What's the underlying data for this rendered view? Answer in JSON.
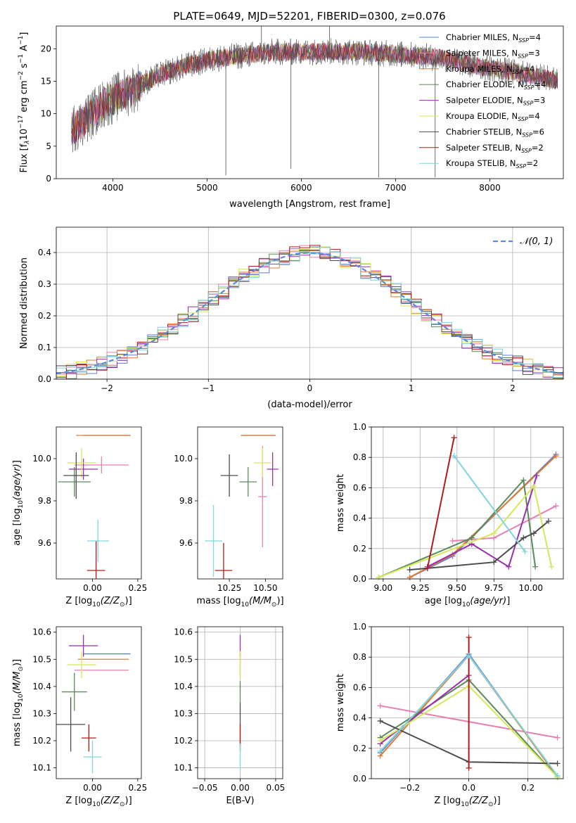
{
  "figure": {
    "title": "PLATE=0649, MJD=52201, FIBERID=0300, z=0.076"
  },
  "series_meta": [
    {
      "name": "Chabrier MILES, N_SSP=4",
      "label_main": "Chabrier MILES, N",
      "label_sub": "SSP",
      "label_tail": "=4",
      "color": "#5b7fd6"
    },
    {
      "name": "Salpeter MILES, N_SSP=3",
      "label_main": "Salpeter MILES, N",
      "label_sub": "SSP",
      "label_tail": "=3",
      "color": "#e87fb3"
    },
    {
      "name": "Kroupa MILES, N_SSP=4",
      "label_main": "Kroupa MILES, N",
      "label_sub": "SSP",
      "label_tail": "=4",
      "color": "#e07b2d"
    },
    {
      "name": "Chabrier ELODIE, N_SSP=4",
      "label_main": "Chabrier ELODIE, N",
      "label_sub": "SSP",
      "label_tail": "=4",
      "color": "#5a8a5a"
    },
    {
      "name": "Salpeter ELODIE, N_SSP=3",
      "label_main": "Salpeter ELODIE, N",
      "label_sub": "SSP",
      "label_tail": "=3",
      "color": "#9b2fae"
    },
    {
      "name": "Kroupa ELODIE, N_SSP=4",
      "label_main": "Kroupa ELODIE, N",
      "label_sub": "SSP",
      "label_tail": "=4",
      "color": "#d6e85a"
    },
    {
      "name": "Chabrier STELIB, N_SSP=6",
      "label_main": "Chabrier STELIB, N",
      "label_sub": "SSP",
      "label_tail": "=6",
      "color": "#4d4d4d"
    },
    {
      "name": "Salpeter STELIB, N_SSP=2",
      "label_main": "Salpeter STELIB, N",
      "label_sub": "SSP",
      "label_tail": "=2",
      "color": "#b01c1c"
    },
    {
      "name": "Kroupa STELIB, N_SSP=2",
      "label_main": "Kroupa STELIB, N",
      "label_sub": "SSP",
      "label_tail": "=2",
      "color": "#7fd6dc"
    }
  ],
  "chart_data": [
    {
      "id": "spectrum",
      "type": "line",
      "title": "PLATE=0649, MJD=52201, FIBERID=0300, z=0.076",
      "xlabel": "wavelength [Angstrom, rest frame]",
      "ylabel_main": "Flux [f",
      "ylabel_lambda": "λ",
      "ylabel_rest": "10",
      "ylabel_exp1": "−17",
      "ylabel_mid": " erg cm",
      "ylabel_exp2": "−2",
      "ylabel_s": " s",
      "ylabel_exp3": "−1",
      "ylabel_end": " A",
      "ylabel_exp4": "−1",
      "ylabel_close": "]",
      "xlim": [
        3400,
        8780
      ],
      "ylim": [
        0,
        23.5
      ],
      "xticks": [
        4000,
        5000,
        6000,
        7000,
        8000
      ],
      "yticks": [
        0,
        5,
        10,
        15,
        20
      ],
      "continuum": {
        "x": [
          3550,
          3700,
          3900,
          4100,
          4300,
          4500,
          4800,
          5100,
          5400,
          5700,
          6000,
          6300,
          6600,
          6900,
          7200,
          7500,
          7800,
          8100,
          8400,
          8780
        ],
        "y": [
          7.5,
          9.0,
          11.5,
          13.0,
          14.5,
          16.0,
          17.5,
          18.5,
          19.0,
          19.5,
          19.5,
          19.6,
          19.5,
          19.3,
          19.0,
          18.5,
          17.5,
          16.8,
          16.0,
          15.0
        ]
      },
      "spikes": [
        {
          "x": 5199,
          "y": 0.5
        },
        {
          "x": 5577,
          "y": 23.5
        },
        {
          "x": 5890,
          "y": 1.5
        },
        {
          "x": 6300,
          "y": 23.5
        },
        {
          "x": 6820,
          "y": 0.2
        },
        {
          "x": 7420,
          "y": 0.2
        }
      ]
    },
    {
      "id": "residual-histogram",
      "type": "line",
      "xlabel": "(data-model)/error",
      "ylabel": "Normed distribution",
      "xlim": [
        -2.5,
        2.5
      ],
      "ylim": [
        0,
        0.48
      ],
      "xticks": [
        -2,
        -1,
        0,
        1,
        2
      ],
      "yticks": [
        0,
        0.1,
        0.2,
        0.3,
        0.4
      ],
      "legend": "𝒩(0, 1)",
      "legend_placement": "top-right",
      "grid": true
    },
    {
      "id": "age-vs-Z",
      "type": "scatter",
      "xlabel_main": "Z [log",
      "xlabel_sub": "10",
      "xlabel_tail": "(Z/Z",
      "xlabel_sun": "⊙",
      "xlabel_end": ")]",
      "ylabel": "age  [log10(age/yr)]",
      "xlim": [
        -0.2,
        0.27
      ],
      "ylim": [
        9.43,
        10.15
      ],
      "xticks": [
        0.0,
        0.25
      ],
      "xtick_labels": [
        "0.00",
        "0.25"
      ],
      "yticks": [
        9.6,
        9.8,
        10.0
      ],
      "points": [
        {
          "series": 0,
          "x": 0.08,
          "y": 10.11,
          "xerr": 0.13,
          "yerr": 0.0
        },
        {
          "series": 1,
          "x": 0.05,
          "y": 9.97,
          "xerr": 0.15,
          "yerr": 0.04
        },
        {
          "series": 2,
          "x": 0.06,
          "y": 10.11,
          "xerr": 0.15,
          "yerr": 0.0
        },
        {
          "series": 3,
          "x": -0.1,
          "y": 9.89,
          "xerr": 0.09,
          "yerr": 0.07
        },
        {
          "series": 4,
          "x": -0.05,
          "y": 9.95,
          "xerr": 0.08,
          "yerr": 0.05
        },
        {
          "series": 5,
          "x": -0.06,
          "y": 9.98,
          "xerr": 0.08,
          "yerr": 0.07
        },
        {
          "series": 6,
          "x": -0.09,
          "y": 9.92,
          "xerr": 0.07,
          "yerr": 0.11
        },
        {
          "series": 7,
          "x": 0.02,
          "y": 9.47,
          "xerr": 0.05,
          "yerr": 0.14
        },
        {
          "series": 8,
          "x": 0.03,
          "y": 9.61,
          "xerr": 0.06,
          "yerr": 0.1
        }
      ]
    },
    {
      "id": "age-vs-mass",
      "type": "scatter",
      "xlabel_main": "mass [log",
      "xlabel_sub": "10",
      "xlabel_tail": "(M/M",
      "xlabel_sun": "⊙",
      "xlabel_end": ")]",
      "xlim": [
        10.03,
        10.62
      ],
      "ylim": [
        9.43,
        10.15
      ],
      "xticks": [
        10.25,
        10.5
      ],
      "xtick_labels": [
        "10.25",
        "10.50"
      ],
      "yticks": [
        9.6,
        9.8,
        10.0
      ],
      "points": [
        {
          "series": 0,
          "x": 10.45,
          "y": 10.11,
          "xerr": 0.12,
          "yerr": 0.0
        },
        {
          "series": 1,
          "x": 10.48,
          "y": 9.82,
          "xerr": 0.03,
          "yerr": 0.24
        },
        {
          "series": 2,
          "x": 10.45,
          "y": 10.11,
          "xerr": 0.12,
          "yerr": 0.0
        },
        {
          "series": 3,
          "x": 10.38,
          "y": 9.89,
          "xerr": 0.06,
          "yerr": 0.07
        },
        {
          "series": 4,
          "x": 10.55,
          "y": 9.95,
          "xerr": 0.04,
          "yerr": 0.08
        },
        {
          "series": 5,
          "x": 10.48,
          "y": 9.98,
          "xerr": 0.06,
          "yerr": 0.07
        },
        {
          "series": 6,
          "x": 10.25,
          "y": 9.92,
          "xerr": 0.06,
          "yerr": 0.1
        },
        {
          "series": 7,
          "x": 10.21,
          "y": 9.47,
          "xerr": 0.06,
          "yerr": 0.13
        },
        {
          "series": 8,
          "x": 10.14,
          "y": 9.61,
          "xerr": 0.06,
          "yerr": 0.17
        }
      ]
    },
    {
      "id": "mass-weight-vs-age",
      "type": "line",
      "xlabel": "age  [log10(age/yr)]",
      "ylabel": "mass weight",
      "xlim": [
        8.92,
        10.22
      ],
      "ylim": [
        0,
        1.0
      ],
      "xticks": [
        9.0,
        9.25,
        9.5,
        9.75,
        10.0
      ],
      "xtick_labels": [
        "9.00",
        "9.25",
        "9.50",
        "9.75",
        "10.00"
      ],
      "yticks": [
        0.0,
        0.2,
        0.4,
        0.6,
        0.8,
        1.0
      ],
      "grid": true,
      "series": [
        {
          "series": 0,
          "x": [
            9.18,
            9.47,
            10.17
          ],
          "y": [
            0.01,
            0.15,
            0.82
          ]
        },
        {
          "series": 1,
          "x": [
            9.47,
            9.75,
            10.17
          ],
          "y": [
            0.25,
            0.27,
            0.48
          ]
        },
        {
          "series": 2,
          "x": [
            9.18,
            9.47,
            10.17
          ],
          "y": [
            0.01,
            0.16,
            0.81
          ]
        },
        {
          "series": 3,
          "x": [
            8.97,
            9.6,
            9.95,
            10.03
          ],
          "y": [
            0.01,
            0.27,
            0.65,
            0.08
          ]
        },
        {
          "series": 4,
          "x": [
            9.3,
            9.6,
            9.85,
            10.04
          ],
          "y": [
            0.08,
            0.23,
            0.08,
            0.68
          ]
        },
        {
          "series": 5,
          "x": [
            8.97,
            9.75,
            10.02,
            10.14
          ],
          "y": [
            0.01,
            0.3,
            0.61,
            0.08
          ]
        },
        {
          "series": 6,
          "x": [
            9.18,
            9.3,
            9.75,
            9.95,
            10.02,
            10.12
          ],
          "y": [
            0.06,
            0.07,
            0.11,
            0.27,
            0.3,
            0.38
          ]
        },
        {
          "series": 7,
          "x": [
            9.3,
            9.48
          ],
          "y": [
            0.07,
            0.93
          ]
        },
        {
          "series": 8,
          "x": [
            9.48,
            9.96
          ],
          "y": [
            0.81,
            0.18
          ]
        }
      ]
    },
    {
      "id": "mass-vs-Z",
      "type": "scatter",
      "xlabel_main": "Z [log",
      "xlabel_sub": "10",
      "xlabel_tail": "(Z/Z",
      "xlabel_sun": "⊙",
      "xlabel_end": ")]",
      "ylabel": "mass [log10(M/M⊙)]",
      "xlim": [
        -0.2,
        0.27
      ],
      "ylim": [
        10.06,
        10.62
      ],
      "xticks": [
        0.0,
        0.25
      ],
      "xtick_labels": [
        "0.00",
        "0.25"
      ],
      "yticks": [
        10.1,
        10.2,
        10.3,
        10.4,
        10.5,
        10.6
      ],
      "points": [
        {
          "series": 0,
          "x": 0.08,
          "y": 10.52,
          "xerr": 0.13,
          "yerr": 0.0
        },
        {
          "series": 1,
          "x": 0.05,
          "y": 10.46,
          "xerr": 0.15,
          "yerr": 0.0
        },
        {
          "series": 2,
          "x": 0.06,
          "y": 10.5,
          "xerr": 0.14,
          "yerr": 0.0
        },
        {
          "series": 3,
          "x": -0.1,
          "y": 10.38,
          "xerr": 0.07,
          "yerr": 0.07
        },
        {
          "series": 4,
          "x": -0.05,
          "y": 10.55,
          "xerr": 0.08,
          "yerr": 0.04
        },
        {
          "series": 5,
          "x": -0.06,
          "y": 10.48,
          "xerr": 0.08,
          "yerr": 0.05
        },
        {
          "series": 6,
          "x": -0.12,
          "y": 10.26,
          "xerr": 0.08,
          "yerr": 0.1
        },
        {
          "series": 7,
          "x": -0.02,
          "y": 10.21,
          "xerr": 0.04,
          "yerr": 0.05
        },
        {
          "series": 8,
          "x": 0.0,
          "y": 10.14,
          "xerr": 0.05,
          "yerr": 0.06
        }
      ]
    },
    {
      "id": "mass-vs-EBV",
      "type": "scatter",
      "xlabel": "E(B-V)",
      "xlim": [
        -0.06,
        0.06
      ],
      "ylim": [
        10.06,
        10.62
      ],
      "xticks": [
        -0.05,
        0.0,
        0.05
      ],
      "xtick_labels": [
        "−0.05",
        "0.00",
        "0.05"
      ],
      "yticks": [
        10.1,
        10.2,
        10.3,
        10.4,
        10.5,
        10.6
      ],
      "grid": true,
      "points": [
        {
          "series": 0,
          "x": 0.0,
          "y": 10.52,
          "yerr": 0.0
        },
        {
          "series": 1,
          "x": 0.0,
          "y": 10.46,
          "yerr": 0.02
        },
        {
          "series": 2,
          "x": 0.0,
          "y": 10.5,
          "yerr": 0.02
        },
        {
          "series": 3,
          "x": 0.0,
          "y": 10.38,
          "yerr": 0.04
        },
        {
          "series": 4,
          "x": 0.0,
          "y": 10.55,
          "yerr": 0.04
        },
        {
          "series": 5,
          "x": 0.0,
          "y": 10.48,
          "yerr": 0.05
        },
        {
          "series": 6,
          "x": 0.0,
          "y": 10.26,
          "yerr": 0.08
        },
        {
          "series": 7,
          "x": 0.0,
          "y": 10.21,
          "yerr": 0.05
        },
        {
          "series": 8,
          "x": 0.0,
          "y": 10.14,
          "yerr": 0.05
        }
      ]
    },
    {
      "id": "mass-weight-vs-Z",
      "type": "line",
      "xlabel_main": "Z [log",
      "xlabel_sub": "10",
      "xlabel_tail": "(Z/Z",
      "xlabel_sun": "⊙",
      "xlabel_end": ")]",
      "ylabel": "mass weight",
      "xlim": [
        -0.33,
        0.32
      ],
      "ylim": [
        0,
        1.0
      ],
      "xticks": [
        -0.2,
        0.0,
        0.2
      ],
      "xtick_labels": [
        "−0.2",
        "0.0",
        "0.2"
      ],
      "yticks": [
        0.0,
        0.2,
        0.4,
        0.6,
        0.8,
        1.0
      ],
      "grid": true,
      "series": [
        {
          "series": 0,
          "x": [
            -0.3,
            0.0,
            0.3
          ],
          "y": [
            0.17,
            0.82,
            0.01
          ]
        },
        {
          "series": 1,
          "x": [
            -0.3,
            0.3
          ],
          "y": [
            0.48,
            0.27
          ]
        },
        {
          "series": 2,
          "x": [
            -0.3,
            0.0,
            0.3
          ],
          "y": [
            0.15,
            0.81,
            0.01
          ]
        },
        {
          "series": 3,
          "x": [
            -0.3,
            0.0,
            0.3
          ],
          "y": [
            0.27,
            0.65,
            0.01
          ]
        },
        {
          "series": 4,
          "x": [
            -0.3,
            0.0
          ],
          "y": [
            0.23,
            0.68
          ]
        },
        {
          "series": 5,
          "x": [
            -0.3,
            0.0,
            0.3
          ],
          "y": [
            0.25,
            0.61,
            0.01
          ]
        },
        {
          "series": 6,
          "x": [
            -0.3,
            0.0,
            0.3
          ],
          "y": [
            0.38,
            0.11,
            0.1
          ]
        },
        {
          "series": 7,
          "x": [
            0.0,
            0.0
          ],
          "y": [
            0.07,
            0.93
          ]
        },
        {
          "series": 8,
          "x": [
            -0.3,
            0.0,
            0.3
          ],
          "y": [
            0.18,
            0.81,
            0.02
          ]
        }
      ]
    }
  ]
}
